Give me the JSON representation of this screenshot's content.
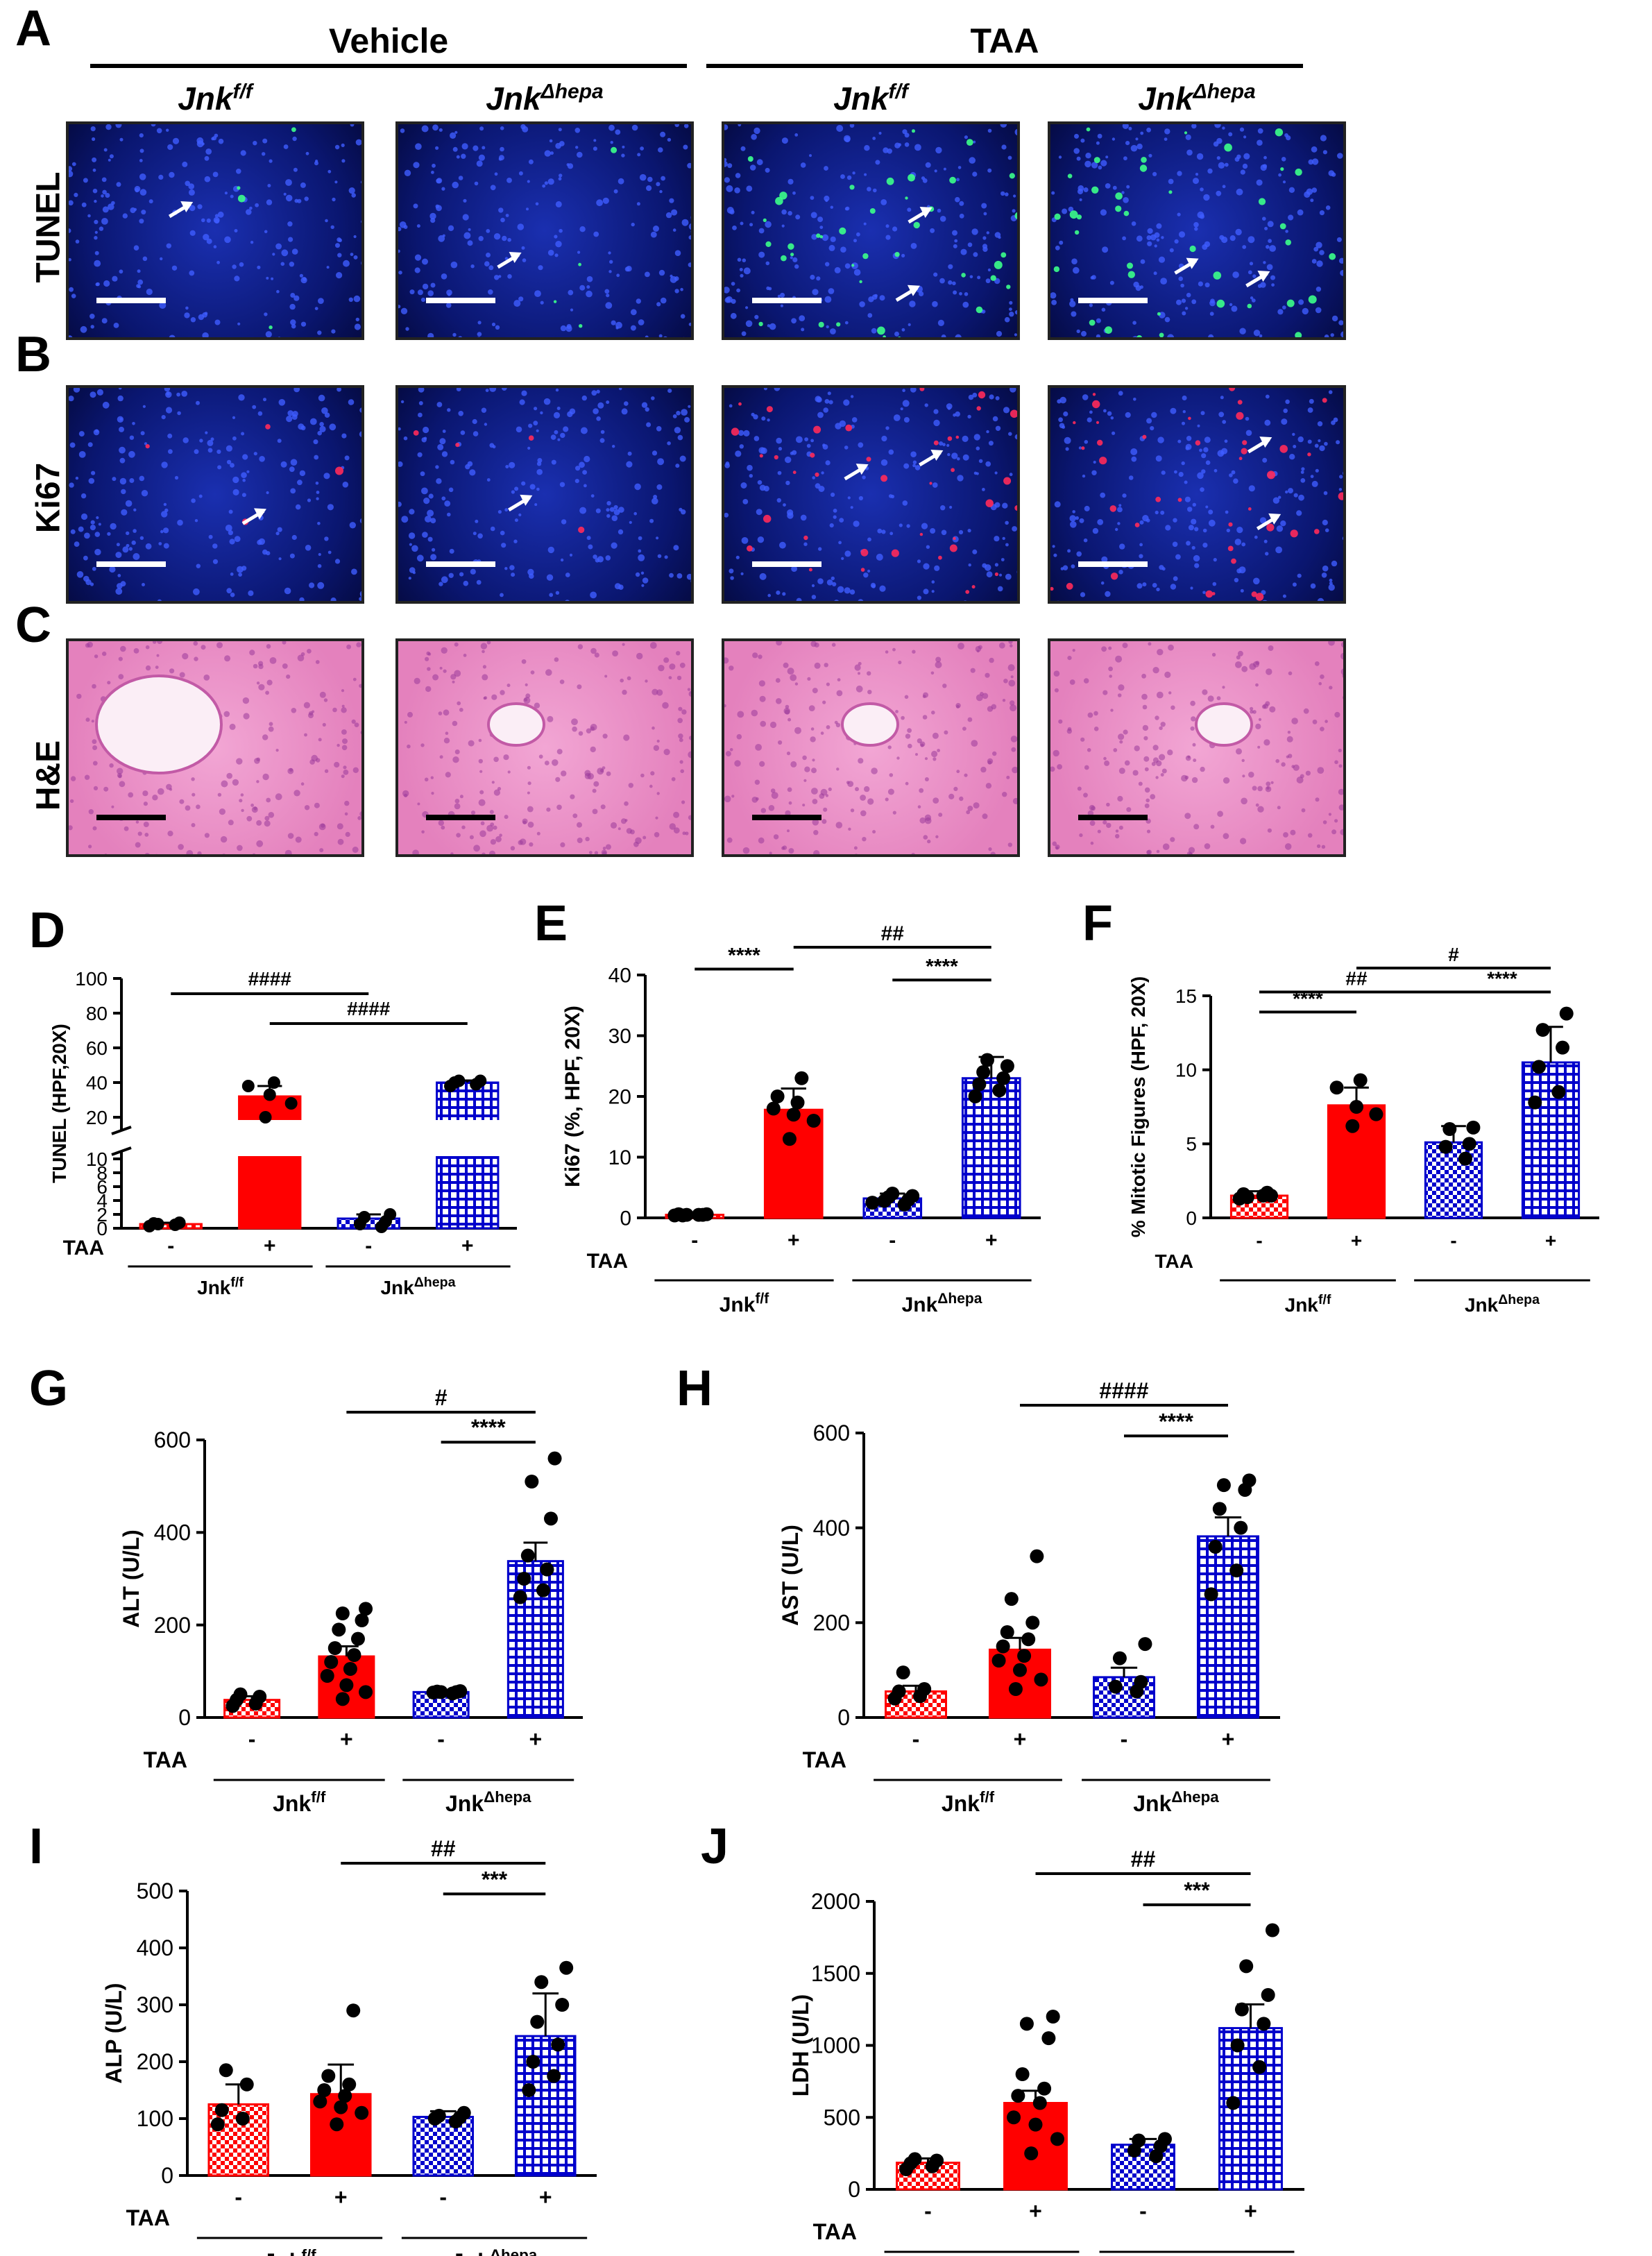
{
  "panels": {
    "A": "A",
    "B": "B",
    "C": "C",
    "D": "D",
    "E": "E",
    "F": "F",
    "G": "G",
    "H": "H",
    "I": "I",
    "J": "J"
  },
  "groups": {
    "vehicle": "Vehicle",
    "taa": "TAA"
  },
  "genotypes": {
    "flox_base": "Jnk",
    "flox_sup": "f/f",
    "hepa_base": "Jnk",
    "hepa_sup": "Δhepa"
  },
  "rows": {
    "tunel": "TUNEL",
    "ki67": "Ki67",
    "he": "H&E"
  },
  "colors": {
    "red": "#ff0000",
    "blue": "#0000cc",
    "fluor_bg": "#0a1a8a",
    "he_bg": "#e87fbf"
  },
  "chart_data": [
    {
      "id": "D",
      "type": "bar",
      "ylabel": "TUNEL (HPF,20X)",
      "yticks_low": [
        "0",
        "2",
        "4",
        "6",
        "8",
        "10"
      ],
      "yticks_high": [
        "20",
        "40",
        "60",
        "80",
        "100"
      ],
      "categories": [
        "-",
        "+",
        "-",
        "+"
      ],
      "values": [
        0.6,
        32,
        1.4,
        40
      ],
      "errors": [
        0.2,
        6,
        0.6,
        1.2
      ],
      "points": [
        [
          0.3,
          0.5,
          0.7,
          0.8,
          0.6
        ],
        [
          20,
          28,
          33,
          38,
          40
        ],
        [
          0.2,
          0.6,
          1.0,
          1.6,
          2.0
        ],
        [
          38,
          39,
          40,
          41,
          41
        ]
      ],
      "treat_label": "TAA",
      "sig": [
        "####",
        "####"
      ]
    },
    {
      "id": "E",
      "type": "bar",
      "ylabel": "Ki67 (%, HPF, 20X)",
      "ylim": [
        0,
        40
      ],
      "yticks": [
        "0",
        "10",
        "20",
        "30",
        "40"
      ],
      "categories": [
        "-",
        "+",
        "-",
        "+"
      ],
      "values": [
        0.5,
        17.8,
        3.2,
        23
      ],
      "errors": [
        0.2,
        3.5,
        0.8,
        3.5
      ],
      "points": [
        [
          0.4,
          0.5,
          0.6,
          0.5,
          0.4,
          0.6,
          0.5
        ],
        [
          13,
          16,
          17,
          18,
          19,
          20,
          23
        ],
        [
          2.2,
          2.8,
          3.0,
          3.4,
          3.6,
          4.0,
          2.5
        ],
        [
          20,
          21,
          22,
          23,
          24,
          25,
          26
        ]
      ],
      "treat_label": "TAA",
      "sig": [
        "****",
        "****",
        "##"
      ]
    },
    {
      "id": "F",
      "type": "bar",
      "ylabel": "% Mitotic Figures (HPF, 20X)",
      "ylim": [
        0,
        15
      ],
      "yticks": [
        "0",
        "5",
        "10",
        "15"
      ],
      "categories": [
        "-",
        "+",
        "-",
        "+"
      ],
      "values": [
        1.5,
        7.6,
        5.1,
        10.5
      ],
      "errors": [
        0.3,
        1.2,
        1.1,
        2.4
      ],
      "points": [
        [
          1.3,
          1.5,
          1.6,
          1.7,
          1.4,
          1.5
        ],
        [
          6.2,
          7.0,
          7.5,
          8.8,
          9.3
        ],
        [
          4.0,
          4.8,
          5.0,
          6.0,
          6.1
        ],
        [
          7.8,
          8.5,
          10.2,
          11.5,
          12.7,
          13.8
        ]
      ],
      "treat_label": "TAA",
      "sig": [
        "****",
        "##",
        "****",
        "#"
      ]
    },
    {
      "id": "G",
      "type": "bar",
      "ylabel": "ALT (U/L)",
      "ylim": [
        0,
        600
      ],
      "yticks": [
        "0",
        "200",
        "400",
        "600"
      ],
      "categories": [
        "-",
        "+",
        "-",
        "+"
      ],
      "values": [
        38,
        132,
        55,
        338
      ],
      "errors": [
        8,
        22,
        3,
        40
      ],
      "points": [
        [
          25,
          30,
          38,
          45,
          50
        ],
        [
          40,
          55,
          70,
          90,
          105,
          120,
          135,
          150,
          170,
          190,
          210,
          225,
          235
        ],
        [
          52,
          54,
          55,
          56,
          57,
          55
        ],
        [
          260,
          275,
          300,
          320,
          350,
          430,
          510,
          560
        ]
      ],
      "treat_label": "TAA",
      "sig": [
        "****",
        "#"
      ]
    },
    {
      "id": "H",
      "type": "bar",
      "ylabel": "AST (U/L)",
      "ylim": [
        0,
        600
      ],
      "yticks": [
        "0",
        "200",
        "400",
        "600"
      ],
      "categories": [
        "-",
        "+",
        "-",
        "+"
      ],
      "values": [
        55,
        143,
        85,
        382
      ],
      "errors": [
        12,
        25,
        20,
        40
      ],
      "points": [
        [
          40,
          45,
          55,
          60,
          95
        ],
        [
          60,
          80,
          100,
          120,
          130,
          150,
          165,
          180,
          200,
          250,
          340
        ],
        [
          55,
          65,
          75,
          125,
          155
        ],
        [
          260,
          310,
          360,
          400,
          440,
          480,
          490,
          500
        ]
      ],
      "treat_label": "TAA",
      "sig": [
        "****",
        "####"
      ]
    },
    {
      "id": "I",
      "type": "bar",
      "ylabel": "ALP (U/L)",
      "ylim": [
        0,
        500
      ],
      "yticks": [
        "0",
        "100",
        "200",
        "300",
        "400",
        "500"
      ],
      "categories": [
        "-",
        "+",
        "-",
        "+"
      ],
      "values": [
        125,
        143,
        103,
        245
      ],
      "errors": [
        35,
        52,
        10,
        75
      ],
      "points": [
        [
          90,
          100,
          115,
          160,
          185
        ],
        [
          90,
          110,
          120,
          130,
          140,
          150,
          160,
          175,
          290
        ],
        [
          95,
          100,
          102,
          105,
          110
        ],
        [
          150,
          175,
          200,
          230,
          270,
          300,
          340,
          365
        ]
      ],
      "treat_label": "TAA",
      "sig": [
        "***",
        "##"
      ]
    },
    {
      "id": "J",
      "type": "bar",
      "ylabel": "LDH (U/L)",
      "ylim": [
        0,
        2000
      ],
      "yticks": [
        "0",
        "500",
        "1000",
        "1500",
        "2000"
      ],
      "categories": [
        "-",
        "+",
        "-",
        "+"
      ],
      "values": [
        185,
        600,
        310,
        1120
      ],
      "errors": [
        30,
        85,
        40,
        165
      ],
      "points": [
        [
          140,
          160,
          180,
          200,
          210
        ],
        [
          250,
          350,
          450,
          500,
          600,
          650,
          700,
          800,
          1050,
          1150,
          1200
        ],
        [
          230,
          270,
          300,
          340,
          350
        ],
        [
          600,
          850,
          1000,
          1150,
          1250,
          1350,
          1550,
          1800
        ]
      ],
      "treat_label": "TAA",
      "sig": [
        "***",
        "##"
      ]
    }
  ],
  "group_axis": {
    "flox": "Jnk",
    "flox_sup": "f/f",
    "hepa": "Jnk",
    "hepa_sup": "Δhepa"
  }
}
